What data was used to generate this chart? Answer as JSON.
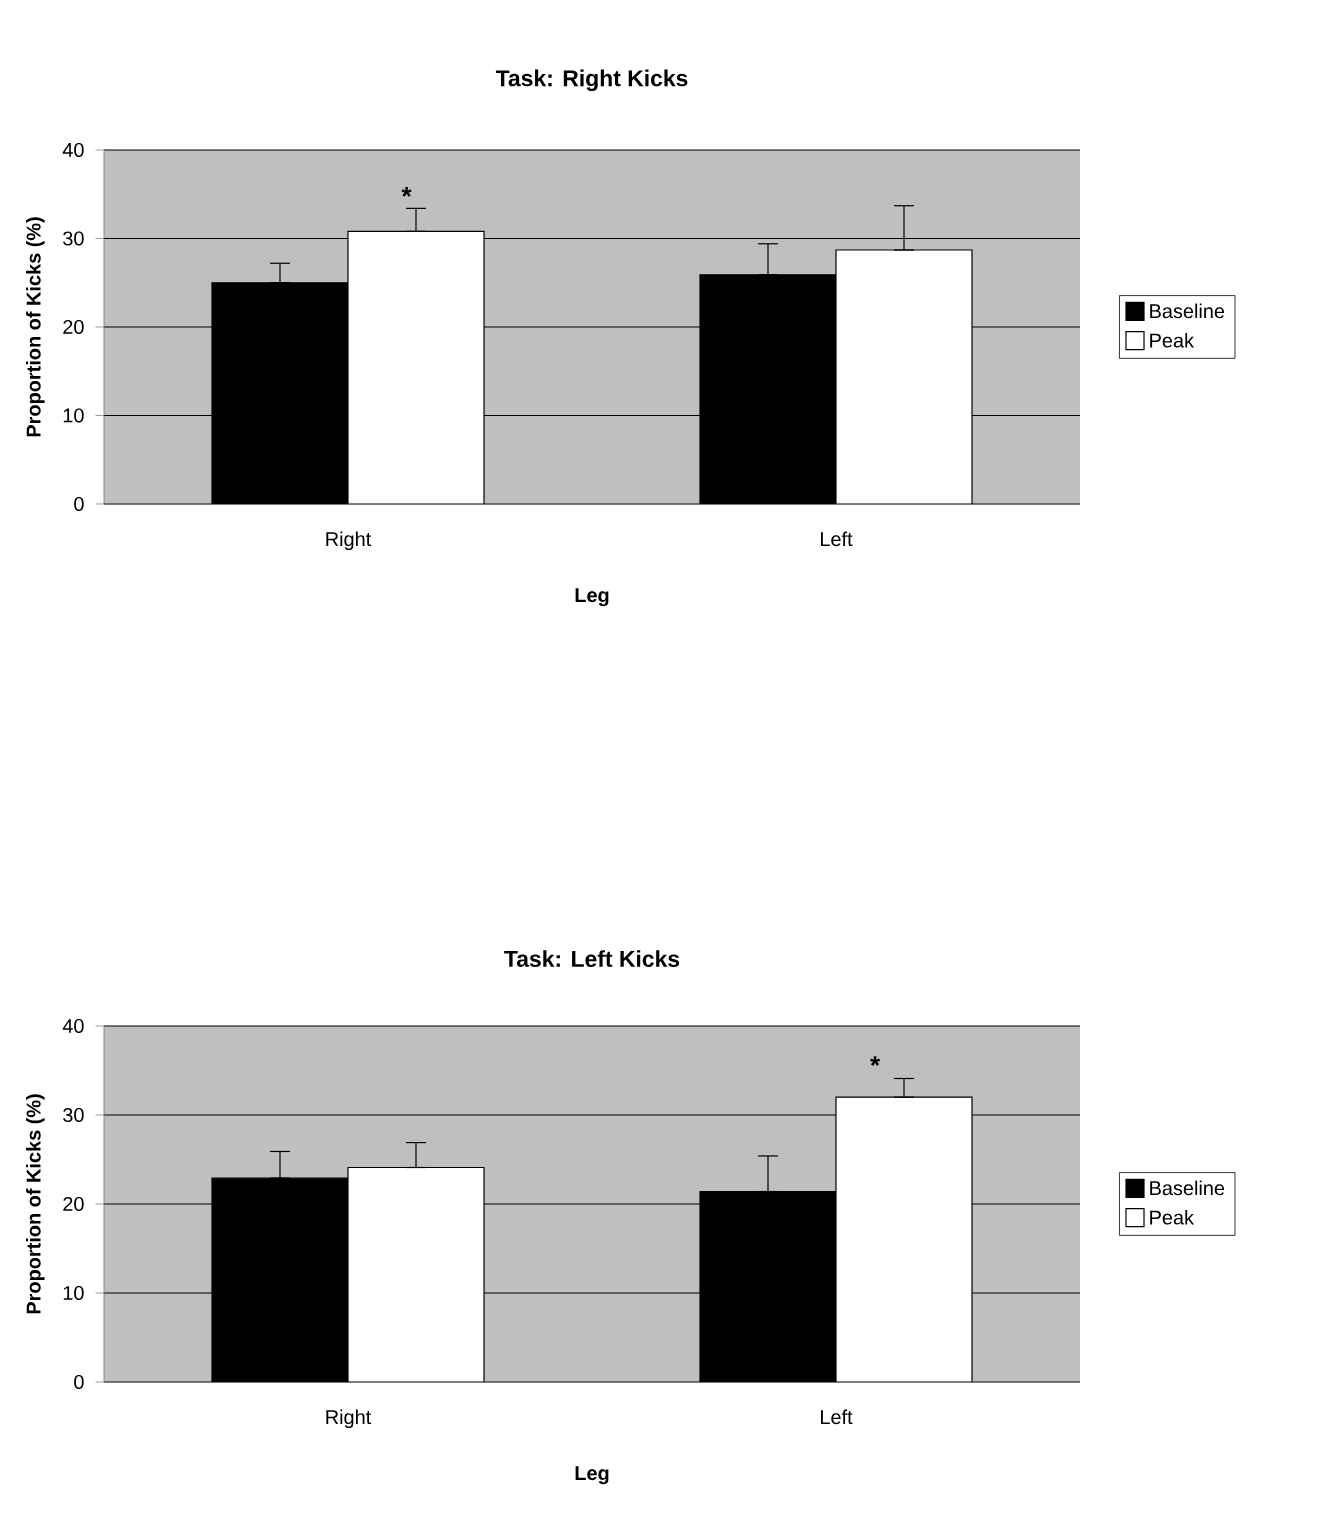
{
  "chart_data": [
    {
      "type": "bar",
      "title": "Task: Right Kicks",
      "xlabel": "Leg",
      "ylabel": "Proportion of Kicks (%)",
      "categories": [
        "Right",
        "Left"
      ],
      "series": [
        {
          "name": "Baseline",
          "color": "#000000",
          "values": [
            25.0,
            25.9
          ],
          "errors": [
            [
              25.0,
              27.2
            ],
            [
              25.9,
              29.4
            ]
          ]
        },
        {
          "name": "Peak",
          "color": "#ffffff",
          "values": [
            30.8,
            28.7
          ],
          "errors": [
            [
              30.8,
              33.4
            ],
            [
              28.7,
              33.7
            ]
          ]
        }
      ],
      "ylim": [
        0,
        40
      ],
      "yticks": [
        0,
        10,
        20,
        30,
        40
      ],
      "grid": "y",
      "legend": "right",
      "annotations": [
        "*"
      ]
    },
    {
      "type": "bar",
      "title": "Task: Left Kicks",
      "xlabel": "Leg",
      "ylabel": "Proportion of Kicks (%)",
      "categories": [
        "Right",
        "Left"
      ],
      "series": [
        {
          "name": "Baseline",
          "color": "#000000",
          "values": [
            22.9,
            21.4
          ],
          "errors": [
            [
              22.9,
              25.9
            ],
            [
              21.4,
              25.4
            ]
          ]
        },
        {
          "name": "Peak",
          "color": "#ffffff",
          "values": [
            24.1,
            32.0
          ],
          "errors": [
            [
              24.1,
              26.9
            ],
            [
              32.0,
              34.1
            ]
          ]
        }
      ],
      "ylim": [
        0,
        40
      ],
      "yticks": [
        0,
        10,
        20,
        30,
        40
      ],
      "grid": "y",
      "legend": "right",
      "annotations": [
        "*"
      ]
    }
  ]
}
